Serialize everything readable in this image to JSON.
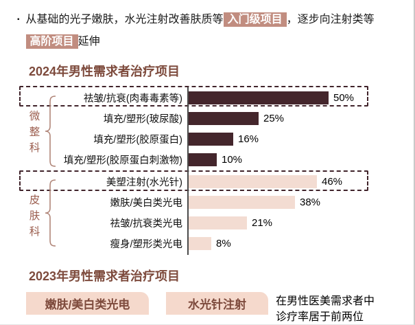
{
  "intro": {
    "bullet": "▪",
    "line1_pre": "从基础的光子嫩肤，水光注射改善肤质等",
    "line1_highlight": "入门级项目",
    "line1_post": "，逐步向注射类等",
    "line2_highlight": "高阶项目",
    "line2_post": "延伸"
  },
  "chart_data": {
    "type": "bar",
    "orientation": "horizontal",
    "title": "2024年男性需求者治疗项目",
    "unit": "%",
    "xlim": [
      0,
      55
    ],
    "value_labels_shown": true,
    "legend": "none",
    "grid": false,
    "groups": [
      {
        "name": "微整科",
        "bar_color": "#44262c",
        "items": [
          {
            "label": "祛皱/抗衰(肉毒毒素等)",
            "value": 50,
            "boxed": true
          },
          {
            "label": "填充/塑形(玻尿酸)",
            "value": 25,
            "boxed": false
          },
          {
            "label": "填充/塑形(胶原蛋白)",
            "value": 16,
            "boxed": false
          },
          {
            "label": "填充/塑形(胶原蛋白刺激物)",
            "value": 10,
            "boxed": false
          }
        ]
      },
      {
        "name": "皮肤科",
        "bar_color": "#f3dcd2",
        "items": [
          {
            "label": "美塑注射(水光针)",
            "value": 46,
            "boxed": true
          },
          {
            "label": "嫩肤/美白类光电",
            "value": 38,
            "boxed": false
          },
          {
            "label": "祛皱/抗衰类光电",
            "value": 21,
            "boxed": false
          },
          {
            "label": "瘦身/塑形类光电",
            "value": 8,
            "boxed": false
          }
        ]
      }
    ]
  },
  "section2023": {
    "title": "2023年男性需求者治疗项目",
    "tags": [
      "嫩肤/美白类光电",
      "水光针注射"
    ],
    "note_lines": [
      "在男性医美需求者中",
      "诊疗率居于前两位"
    ]
  },
  "colors": {
    "dark_bar": "#44262c",
    "light_bar": "#f3dcd2",
    "highlight_bg": "#c18d80",
    "highlight_text": "#ffffff",
    "pill_bg": "#f5d9cc",
    "heading": "#7d4a3c",
    "group_label": "#9c5f50",
    "dashed_border": "#40232a",
    "axis": "#4b4b4b"
  }
}
